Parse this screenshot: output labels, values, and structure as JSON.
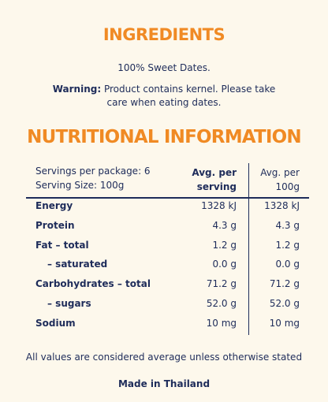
{
  "ingredients": {
    "title": "INGREDIENTS",
    "text": "100% Sweet Dates.",
    "warning_label": "Warning:",
    "warning_text": "Product contains kernel. Please take care when eating dates."
  },
  "nutrition": {
    "title": "NUTRITIONAL INFORMATION",
    "servings_per_package": "Servings per package: 6",
    "serving_size": "Serving Size: 100g",
    "columns": [
      "Avg. per serving",
      "Avg. per 100g"
    ],
    "rows": [
      {
        "label": "Energy",
        "per_serving": "1328 kJ",
        "per_100g": "1328 kJ"
      },
      {
        "label": "Protein",
        "per_serving": "4.3 g",
        "per_100g": "4.3 g"
      },
      {
        "label": "Fat – total",
        "per_serving": "1.2 g",
        "per_100g": "1.2 g"
      },
      {
        "label": "– saturated",
        "per_serving": "0.0 g",
        "per_100g": "0.0 g"
      },
      {
        "label": "Carbohydrates – total",
        "per_serving": "71.2 g",
        "per_100g": "71.2 g"
      },
      {
        "label": "– sugars",
        "per_serving": "52.0 g",
        "per_100g": "52.0 g"
      },
      {
        "label": "Sodium",
        "per_serving": "10 mg",
        "per_100g": "10 mg"
      }
    ]
  },
  "footnote": "All values are considered average unless otherwise stated",
  "origin": "Made in Thailand"
}
